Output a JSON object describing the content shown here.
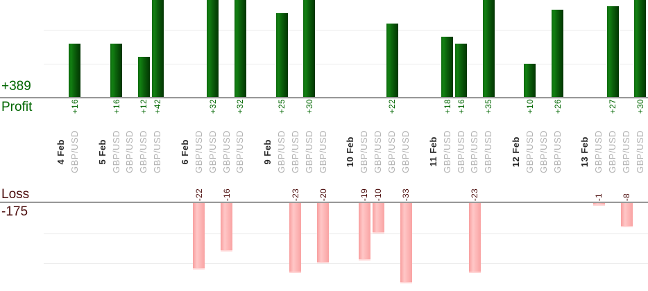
{
  "profit_panel": {
    "total_label": "+389",
    "axis_label": "Profit",
    "text_color": "#006600",
    "bar_color": "#0c640c"
  },
  "loss_panel": {
    "axis_label": "Loss",
    "total_label": "-175",
    "text_color": "#4a0b0b",
    "bar_color": "#fdb9b9"
  },
  "chart_data": {
    "type": "bar",
    "orientation": "vertical",
    "description_visible_text_only": true,
    "symbol": "GBP/USD",
    "gridline_step": 10,
    "grid_on": true,
    "totals": {
      "profit": 389,
      "loss": -175
    },
    "groups": [
      {
        "date": "4 Feb",
        "trades": [
          16
        ]
      },
      {
        "date": "5 Feb",
        "trades": [
          16,
          0,
          12,
          42
        ]
      },
      {
        "date": "6 Feb",
        "trades": [
          -22,
          32,
          -16,
          32
        ]
      },
      {
        "date": "9 Feb",
        "trades": [
          25,
          -23,
          30,
          -20
        ]
      },
      {
        "date": "10 Feb",
        "trades": [
          -19,
          -10,
          22,
          -33
        ]
      },
      {
        "date": "11 Feb",
        "trades": [
          18,
          16,
          -23,
          35
        ]
      },
      {
        "date": "12 Feb",
        "trades": [
          10,
          0,
          26
        ]
      },
      {
        "date": "13 Feb",
        "trades": [
          -1,
          27,
          -8,
          30
        ]
      }
    ],
    "profit_value_labels": [
      "+16",
      "+16",
      "+12",
      "+42",
      "+32",
      "+32",
      "+25",
      "+30",
      "+22",
      "+18",
      "+16",
      "+35",
      "+10",
      "+26",
      "+27",
      "+30"
    ],
    "loss_value_labels": [
      "-22",
      "-16",
      "-23",
      "-20",
      "-19",
      "-10",
      "-33",
      "-23",
      "-1",
      "-8"
    ],
    "axes": {
      "profit_axis_clipped_at_top": true,
      "loss_axis_clipped_at_bottom": true
    }
  }
}
